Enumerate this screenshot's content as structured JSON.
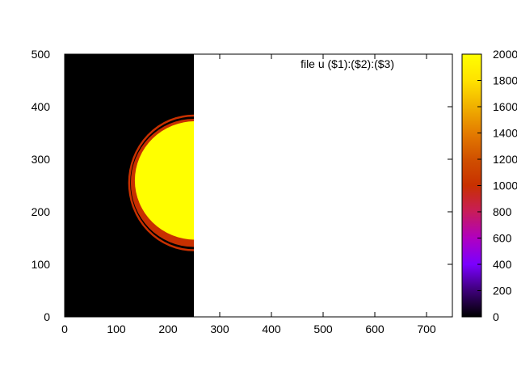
{
  "chart_data": {
    "type": "heatmap",
    "title": "",
    "legend_label": "file u ($1):($2):($3)",
    "legend_position": "top-right",
    "xlim": [
      0,
      750
    ],
    "ylim": [
      0,
      500
    ],
    "x_ticks": [
      0,
      100,
      200,
      300,
      400,
      500,
      600,
      700
    ],
    "y_ticks": [
      0,
      100,
      200,
      300,
      400,
      500
    ],
    "data_x_extent": [
      0,
      250
    ],
    "colorbar": {
      "range": [
        0,
        2000
      ],
      "ticks": [
        0,
        200,
        400,
        600,
        800,
        1000,
        1200,
        1400,
        1600,
        1800,
        2000
      ],
      "palette": [
        "#000000",
        "#3d0078",
        "#7a00ff",
        "#b000c0",
        "#c81c5a",
        "#c83000",
        "#d05000",
        "#e47c00",
        "#f0b000",
        "#ffe200",
        "#ffff00"
      ]
    },
    "background_value": 0,
    "disc": {
      "value": 2000,
      "center": [
        250,
        255
      ],
      "radius": 122,
      "edge_value": 1000
    },
    "grid": false
  }
}
